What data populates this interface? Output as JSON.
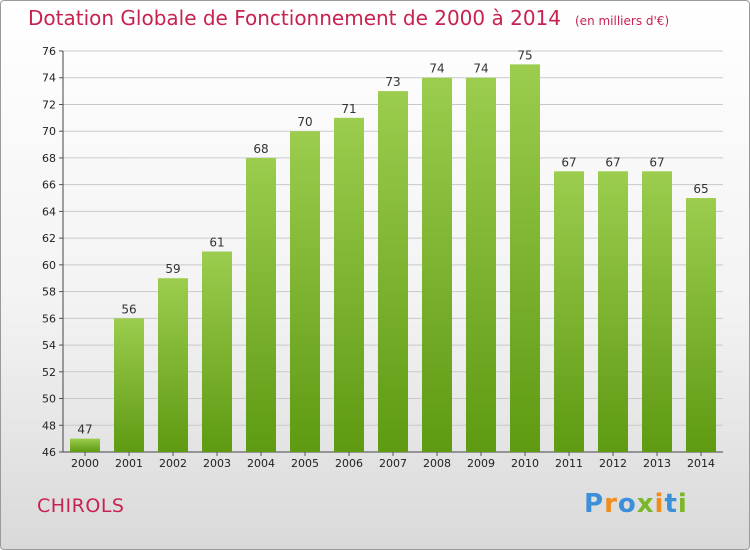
{
  "header": {
    "title": "Dotation Globale de Fonctionnement de 2000 à 2014",
    "unit": "(en milliers d'€)"
  },
  "footer": {
    "commune": "CHIROLS",
    "brand": "Proxiti"
  },
  "colors": {
    "title": "#c8224f",
    "bar_light": "#9ccd4e",
    "bar_dark": "#5e9a12",
    "brand_letters": [
      "#3c8fd8",
      "#f08c1c",
      "#3c8fd8",
      "#7ab827",
      "#f08c1c",
      "#3c8fd8",
      "#7ab827"
    ]
  },
  "chart_data": {
    "type": "bar",
    "title": "Dotation Globale de Fonctionnement de 2000 à 2014",
    "subtitle": "(en milliers d'€)",
    "xlabel": "",
    "ylabel": "",
    "categories": [
      "2000",
      "2001",
      "2002",
      "2003",
      "2004",
      "2005",
      "2006",
      "2007",
      "2008",
      "2009",
      "2010",
      "2011",
      "2012",
      "2013",
      "2014"
    ],
    "values": [
      47,
      56,
      59,
      61,
      68,
      70,
      71,
      73,
      74,
      74,
      75,
      67,
      67,
      67,
      65
    ],
    "ylim": [
      46,
      76
    ],
    "yticks": [
      46,
      48,
      50,
      52,
      54,
      56,
      58,
      60,
      62,
      64,
      66,
      68,
      70,
      72,
      74,
      76
    ],
    "grid": true,
    "legend": "none"
  }
}
